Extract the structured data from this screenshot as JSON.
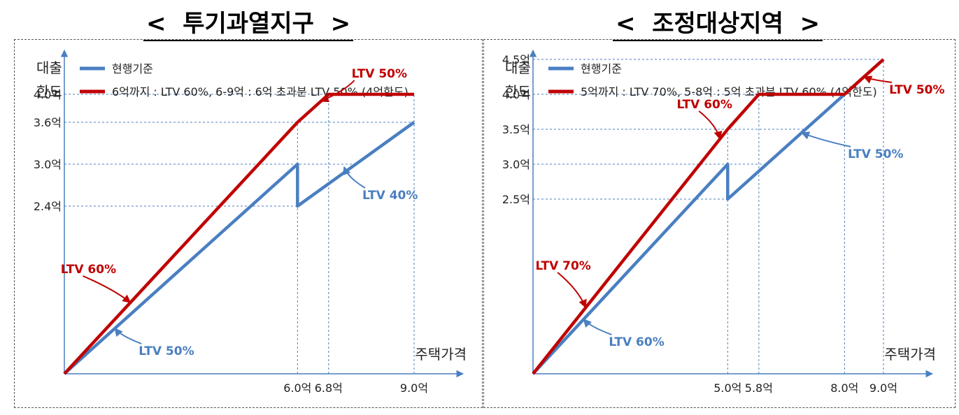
{
  "colors": {
    "current": "#4a7fc1",
    "new": "#c00000",
    "guide": "#4a7fc1",
    "axis": "#4a7fc1",
    "text": "#222222"
  },
  "chart_data": [
    {
      "type": "line",
      "title": "< 투기과열지구 >",
      "title_text": "투기과열지구",
      "title_open": "<",
      "title_close": ">",
      "ylabel_line1": "대출",
      "ylabel_line2": "한도",
      "xlabel": "주택가격",
      "legend": [
        "현행기준",
        "6억까지 : LTV 60%, 6-9억 : 6억 초과분 LTV 50% (4억한도)"
      ],
      "xlim": [
        0,
        9.0
      ],
      "ylim": [
        0,
        4.9
      ],
      "x_ticks": [
        {
          "value": 6.0,
          "label": "6.0억"
        },
        {
          "value": 6.8,
          "label": "6.8억"
        },
        {
          "value": 9.0,
          "label": "9.0억"
        }
      ],
      "y_ticks": [
        {
          "value": 4.0,
          "label": "4.0억"
        },
        {
          "value": 3.6,
          "label": "3.6억"
        },
        {
          "value": 3.0,
          "label": "3.0억"
        },
        {
          "value": 2.4,
          "label": "2.4억"
        }
      ],
      "series": [
        {
          "name": "현행기준",
          "points": [
            [
              0,
              0
            ],
            [
              6.0,
              3.0
            ],
            [
              6.0,
              2.4
            ],
            [
              9.0,
              3.6
            ]
          ]
        },
        {
          "name": "6억까지 : LTV 60%, 6-9억 : 6억 초과분 LTV 50% (4억한도)",
          "points": [
            [
              0,
              0
            ],
            [
              6.0,
              3.6
            ],
            [
              6.8,
              4.0
            ],
            [
              9.0,
              4.0
            ]
          ]
        }
      ],
      "annotations": [
        {
          "text": "LTV 60%",
          "series": 1,
          "at": [
            1.7,
            1.02
          ],
          "dx": -68,
          "dy": -38
        },
        {
          "text": "LTV 50%",
          "series": 0,
          "at": [
            1.3,
            0.65
          ],
          "dx": 38,
          "dy": 22
        },
        {
          "text": "LTV 50%",
          "series": 1,
          "at": [
            6.6,
            3.9
          ],
          "dx": 48,
          "dy": -30
        },
        {
          "text": "LTV 40%",
          "series": 0,
          "at": [
            7.2,
            2.96
          ],
          "dx": 30,
          "dy": 30
        }
      ]
    },
    {
      "type": "line",
      "title": "< 조정대상지역 >",
      "title_text": "조정대상지역",
      "title_open": "<",
      "title_close": ">",
      "ylabel_line1": "대출",
      "ylabel_line2": "한도",
      "xlabel": "주택가격",
      "legend": [
        "현행기준",
        "5억까지 : LTV 70%, 5-8억 : 5억 초과분 LTV 60% (4억한도)"
      ],
      "xlim": [
        0,
        9.0
      ],
      "ylim": [
        0,
        4.9
      ],
      "x_ticks": [
        {
          "value": 5.0,
          "label": "5.0억"
        },
        {
          "value": 5.8,
          "label": "5.8억"
        },
        {
          "value": 8.0,
          "label": "8.0억"
        },
        {
          "value": 9.0,
          "label": "9.0억"
        }
      ],
      "y_ticks": [
        {
          "value": 4.5,
          "label": "4.5억"
        },
        {
          "value": 4.0,
          "label": "4.0억"
        },
        {
          "value": 3.5,
          "label": "3.5억"
        },
        {
          "value": 3.0,
          "label": "3.0억"
        },
        {
          "value": 2.5,
          "label": "2.5억"
        }
      ],
      "series": [
        {
          "name": "현행기준",
          "points": [
            [
              0,
              0
            ],
            [
              5.0,
              3.0
            ],
            [
              5.0,
              2.5
            ],
            [
              9.0,
              4.5
            ]
          ]
        },
        {
          "name": "5억까지 : LTV 70%, 5-8억 : 5억 초과분 LTV 60% (4억한도)",
          "points": [
            [
              0,
              0
            ],
            [
              5.0,
              3.5
            ],
            [
              5.8,
              4.0
            ],
            [
              8.0,
              4.0
            ],
            [
              9.0,
              4.5
            ]
          ]
        }
      ],
      "annotations": [
        {
          "text": "LTV 70%",
          "series": 1,
          "at": [
            1.35,
            0.95
          ],
          "dx": -40,
          "dy": -50
        },
        {
          "text": "LTV 60%",
          "series": 0,
          "at": [
            1.3,
            0.78
          ],
          "dx": 40,
          "dy": 22
        },
        {
          "text": "LTV 60%",
          "series": 1,
          "at": [
            4.8,
            3.36
          ],
          "dx": -30,
          "dy": -40
        },
        {
          "text": "LTV 50%",
          "series": 1,
          "at": [
            8.5,
            4.25
          ],
          "dx": 40,
          "dy": 8
        },
        {
          "text": "LTV 50%",
          "series": 0,
          "at": [
            6.9,
            3.45
          ],
          "dx": 70,
          "dy": 20
        }
      ]
    }
  ]
}
